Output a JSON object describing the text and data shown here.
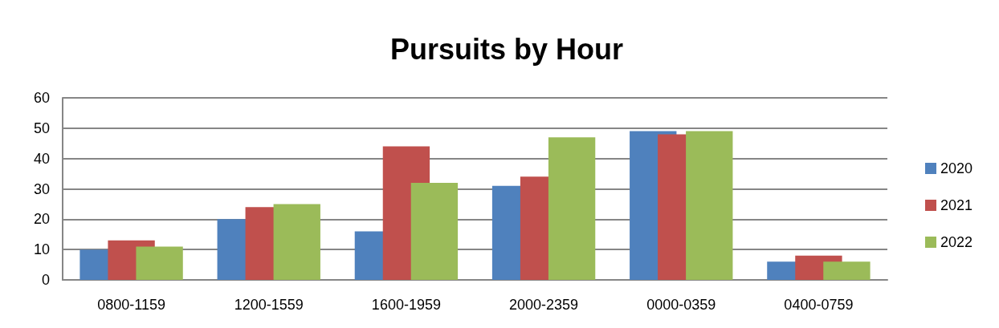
{
  "chart_data": {
    "type": "bar",
    "title": "Pursuits by Hour",
    "categories": [
      "0800-1159",
      "1200-1559",
      "1600-1959",
      "2000-2359",
      "0000-0359",
      "0400-0759"
    ],
    "series": [
      {
        "name": "2020",
        "color": "#4f81bd",
        "values": [
          10,
          20,
          16,
          31,
          49,
          6
        ]
      },
      {
        "name": "2021",
        "color": "#c0504d",
        "values": [
          13,
          24,
          44,
          34,
          48,
          8
        ]
      },
      {
        "name": "2022",
        "color": "#9bbb59",
        "values": [
          11,
          25,
          32,
          47,
          49,
          6
        ]
      }
    ],
    "ylim": [
      0,
      60
    ],
    "yticks": [
      0,
      10,
      20,
      30,
      40,
      50,
      60
    ],
    "grid": "y",
    "legend": "right"
  }
}
